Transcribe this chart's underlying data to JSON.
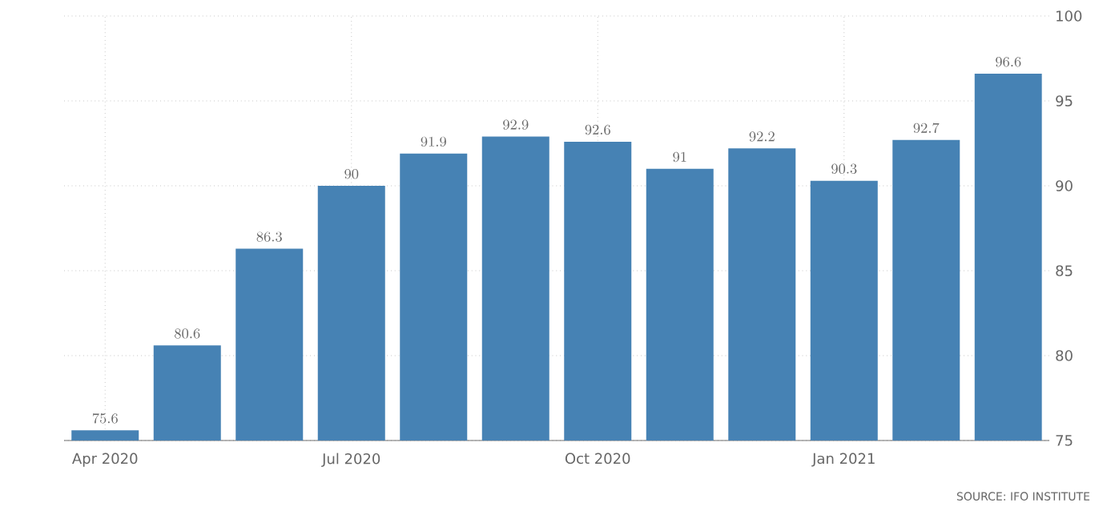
{
  "chart_data": {
    "type": "bar",
    "categories": [
      "Apr 2020",
      null,
      null,
      "Jul 2020",
      null,
      null,
      "Oct 2020",
      null,
      null,
      "Jan 2021",
      null,
      null
    ],
    "values": [
      75.6,
      80.6,
      86.3,
      90,
      91.9,
      92.9,
      92.6,
      91,
      92.2,
      90.3,
      92.7,
      96.6
    ],
    "color": "#4682b4",
    "ylim": [
      75,
      100
    ],
    "yticks": [
      75,
      80,
      85,
      90,
      95,
      100
    ],
    "grid": true,
    "data_labels": true,
    "annotations": [
      "SOURCE: IFO INSTITUTE"
    ]
  }
}
